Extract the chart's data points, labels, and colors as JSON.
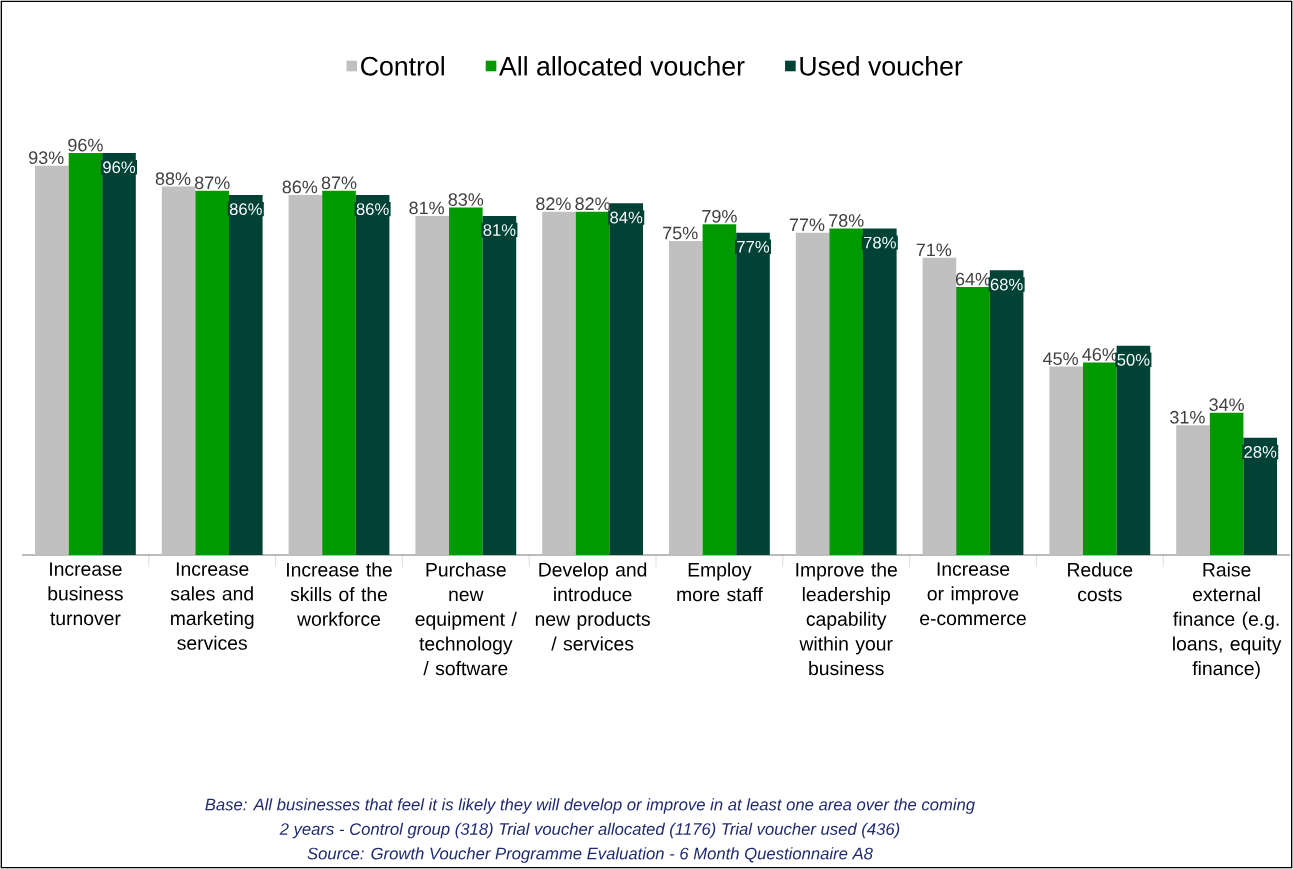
{
  "chart_data": {
    "type": "bar",
    "categories": [
      "Increase business turnover",
      "Increase sales and marketing services",
      "Increase the skills of the workforce",
      "Purchase new equipment / technology / software",
      "Develop and introduce new products / services",
      "Employ more staff",
      "Improve the leadership capability within your business",
      "Increase or improve e-commerce",
      "Reduce costs",
      "Raise external finance (e.g. loans, equity finance)"
    ],
    "series": [
      {
        "name": "Control",
        "color": "#c0c0c0",
        "values": [
          93,
          88,
          86,
          81,
          82,
          75,
          77,
          71,
          45,
          31
        ],
        "value_labels": [
          "93%",
          "88%",
          "86%",
          "81%",
          "82%",
          "75%",
          "77%",
          "71%",
          "45%",
          "31%"
        ]
      },
      {
        "name": "All allocated voucher",
        "color": "#009a00",
        "values": [
          96,
          87,
          87,
          83,
          82,
          79,
          78,
          64,
          46,
          34
        ],
        "value_labels": [
          "96%",
          "87%",
          "87%",
          "83%",
          "82%",
          "79%",
          "78%",
          "64%",
          "46%",
          "34%"
        ]
      },
      {
        "name": "Used voucher",
        "color": "#004236",
        "values": [
          96,
          86,
          86,
          81,
          84,
          77,
          78,
          68,
          50,
          28
        ],
        "value_labels": [
          "96%",
          "86%",
          "86%",
          "81%",
          "84%",
          "77%",
          "78%",
          "68%",
          "50%",
          "28%"
        ]
      }
    ],
    "legend": "top",
    "annotations": [
      "Base: All  businesses  that feel it is likely they will  develop or improve in at least one area over the coming",
      "2 years - Control group (318) Trial  voucher allocated (1176)  Trial voucher used (436)",
      "Source: Growth Voucher Programme Evaluation - 6 Month Questionnaire A8"
    ]
  }
}
